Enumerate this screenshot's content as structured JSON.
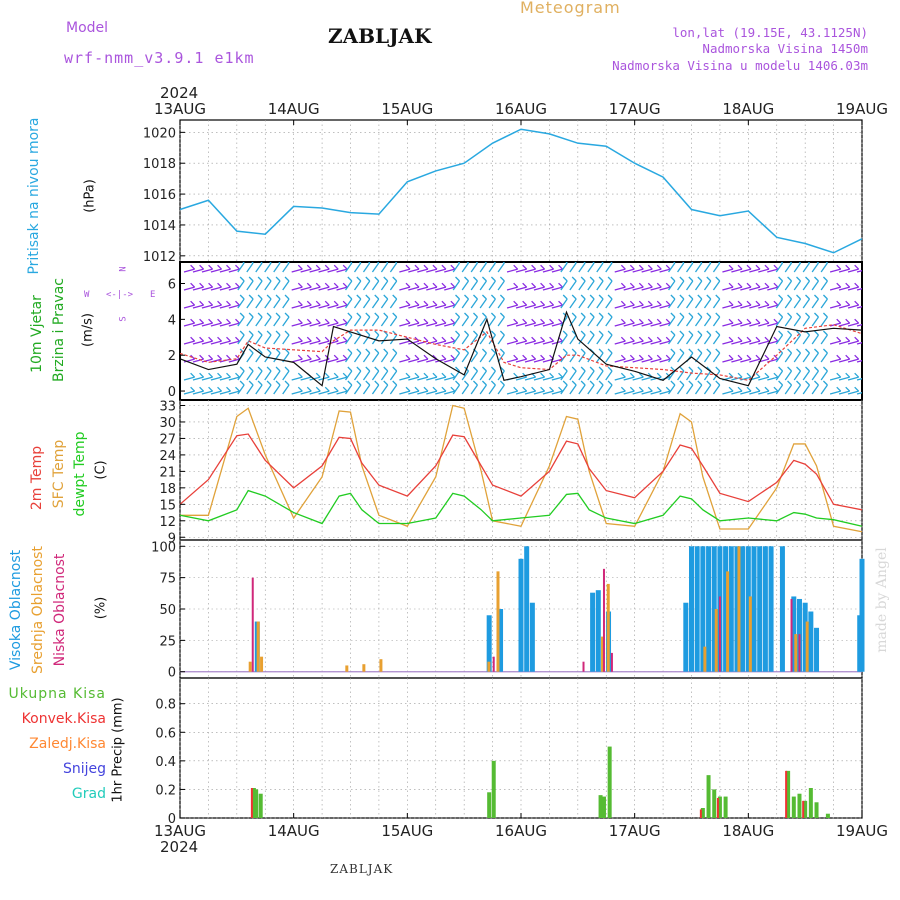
{
  "header": {
    "model_label": "Model",
    "model_name": "wrf-nmm_v3.9.1 e1km",
    "location": "ZABLJAK",
    "title": "Meteogram",
    "coords": "lon,lat (19.15E, 43.1125N)",
    "elevation": "Nadmorska Visina 1450m",
    "model_elevation": "Nadmorska Visina u modelu 1406.03m"
  },
  "footer": {
    "location": "ZABLJAK",
    "credit": "made by Angel"
  },
  "colors": {
    "pressure": "#29a8e0",
    "wind_label": "#22aa22",
    "wind_barb_gust": "#8a2be2",
    "wind_barb_low": "#2aa6d8",
    "temp_2m": "#e8403a",
    "temp_sfc": "#e0a23a",
    "dewpoint": "#22cc22",
    "cloud_high": "#1e9be0",
    "cloud_mid": "#e8a030",
    "cloud_low": "#d0287a",
    "precip_total": "#55bb33",
    "precip_conv": "#ee3333",
    "precip_frz": "#ff8833",
    "precip_snow": "#4444dd",
    "precip_graupel": "#22ccbb",
    "title": "#e0b060",
    "model": "#aa55dd",
    "credit": "#d8d8d8"
  },
  "chart_data": [
    {
      "type": "line",
      "panel": "pressure",
      "ylabel_1": "Pritisak na nivou mora",
      "ylabel_2": "(hPa)",
      "year_label": "2024",
      "x_ticks": [
        "13AUG",
        "14AUG",
        "15AUG",
        "16AUG",
        "17AUG",
        "18AUG",
        "19AUG"
      ],
      "ylim": [
        1011.6,
        1020.8
      ],
      "y_ticks": [
        1012,
        1014,
        1016,
        1018,
        1020
      ],
      "grid": true,
      "x": [
        0,
        0.25,
        0.5,
        0.75,
        1.0,
        1.25,
        1.5,
        1.75,
        2.0,
        2.25,
        2.5,
        2.75,
        3.0,
        3.25,
        3.5,
        3.75,
        4.0,
        4.25,
        4.5,
        4.75,
        5.0,
        5.25,
        5.5,
        5.75,
        6.0
      ],
      "values": [
        1015.0,
        1015.6,
        1013.6,
        1013.4,
        1015.2,
        1015.1,
        1014.8,
        1014.7,
        1016.8,
        1017.5,
        1018.0,
        1019.3,
        1020.2,
        1019.9,
        1019.3,
        1019.1,
        1018.0,
        1017.1,
        1015.0,
        1014.6,
        1014.9,
        1013.2,
        1012.8,
        1012.2,
        1013.1
      ]
    },
    {
      "type": "line",
      "panel": "wind",
      "ylabel_1": "10m Vjetar",
      "ylabel_2": "Brzina i Pravac",
      "ylabel_3": "(m/s)",
      "compass_n": "N",
      "compass_w": "W",
      "compass_e": "E",
      "compass_s": "S",
      "ylim": [
        -0.5,
        7.2
      ],
      "y_ticks": [
        0,
        2,
        4,
        6
      ],
      "x": [
        0,
        0.25,
        0.5,
        0.6,
        0.75,
        1.0,
        1.25,
        1.35,
        1.5,
        1.75,
        2.0,
        2.25,
        2.5,
        2.7,
        2.85,
        3.0,
        3.25,
        3.4,
        3.5,
        3.75,
        4.0,
        4.25,
        4.5,
        4.75,
        5.0,
        5.25,
        5.5,
        5.75,
        6.0
      ],
      "series": [
        {
          "name": "speed",
          "values": [
            1.8,
            1.2,
            1.5,
            2.6,
            1.9,
            1.6,
            0.3,
            3.6,
            3.3,
            2.8,
            2.9,
            1.8,
            0.9,
            4.0,
            0.6,
            0.8,
            1.2,
            4.4,
            2.9,
            1.5,
            1.1,
            0.6,
            1.9,
            0.7,
            0.3,
            3.6,
            3.3,
            3.5,
            3.4
          ]
        },
        {
          "name": "gust",
          "values": [
            2.1,
            1.6,
            1.8,
            2.8,
            2.4,
            2.3,
            2.2,
            2.8,
            3.4,
            3.4,
            3.0,
            2.6,
            2.3,
            3.3,
            1.6,
            1.3,
            1.2,
            2.0,
            2.0,
            1.4,
            1.3,
            1.2,
            1.0,
            0.9,
            0.6,
            2.0,
            3.5,
            3.7,
            3.2
          ]
        }
      ]
    },
    {
      "type": "line",
      "panel": "temperature",
      "ylabel_1": "2m Temp",
      "ylabel_2": "SFC Temp",
      "ylabel_3": "dewpt Temp",
      "ylabel_4": "(C)",
      "ylim": [
        8.5,
        34
      ],
      "y_ticks": [
        9,
        12,
        15,
        18,
        21,
        24,
        27,
        30,
        33
      ],
      "x": [
        0,
        0.25,
        0.5,
        0.6,
        0.75,
        1.0,
        1.25,
        1.4,
        1.5,
        1.6,
        1.75,
        2.0,
        2.25,
        2.4,
        2.5,
        2.65,
        2.75,
        3.0,
        3.25,
        3.4,
        3.5,
        3.6,
        3.75,
        4.0,
        4.25,
        4.4,
        4.5,
        4.6,
        4.75,
        5.0,
        5.25,
        5.4,
        5.5,
        5.6,
        5.75,
        6.0
      ],
      "series": [
        {
          "name": "2m Temp",
          "values": [
            15,
            19.5,
            27.5,
            27.8,
            23,
            18,
            22,
            27.2,
            27.0,
            22.5,
            18.5,
            16.5,
            22,
            27.6,
            27.3,
            22,
            18.5,
            16.5,
            21,
            26.5,
            26.0,
            21.5,
            17.5,
            16.2,
            21,
            25.8,
            25.2,
            22,
            17,
            15.5,
            19,
            23.0,
            22.3,
            20.5,
            15,
            14
          ]
        },
        {
          "name": "SFC Temp",
          "values": [
            13,
            13,
            31,
            32.5,
            24,
            12.5,
            20,
            32.0,
            31.8,
            22,
            13,
            11,
            20,
            33.0,
            32.5,
            21,
            12,
            11,
            22,
            31.0,
            30.5,
            21,
            11.5,
            11,
            21,
            31.5,
            30,
            20,
            10.5,
            10.5,
            18,
            26,
            26,
            22,
            11,
            10
          ]
        },
        {
          "name": "dewpt Temp",
          "values": [
            13,
            12,
            14,
            17.5,
            16.5,
            13.5,
            11.5,
            16.5,
            17.0,
            14,
            11.5,
            11.5,
            12.5,
            17.0,
            16.5,
            14,
            12,
            12.5,
            13,
            16.8,
            17.0,
            14,
            12.5,
            11.5,
            13,
            16.5,
            16,
            14,
            12,
            12.5,
            12,
            13.5,
            13.2,
            12.5,
            12.2,
            11
          ]
        }
      ]
    },
    {
      "type": "bar",
      "panel": "cloud",
      "ylabel_1": "Visoka Oblacnost",
      "ylabel_2": "Srednja Oblacnost",
      "ylabel_3": "Niska Oblacnost",
      "ylabel_4": "(%)",
      "ylim": [
        -5,
        105
      ],
      "y_ticks": [
        0,
        25,
        50,
        75,
        100
      ],
      "series": [
        {
          "name": "Visoka Oblacnost",
          "points": [
            [
              0.68,
              40
            ],
            [
              2.72,
              45
            ],
            [
              2.82,
              50
            ],
            [
              3.0,
              90
            ],
            [
              3.05,
              100
            ],
            [
              3.1,
              55
            ],
            [
              3.63,
              63
            ],
            [
              3.68,
              65
            ],
            [
              3.77,
              48
            ],
            [
              4.45,
              55
            ],
            [
              4.5,
              100
            ],
            [
              4.55,
              100
            ],
            [
              4.6,
              100
            ],
            [
              4.65,
              100
            ],
            [
              4.7,
              100
            ],
            [
              4.75,
              100
            ],
            [
              4.8,
              100
            ],
            [
              4.85,
              100
            ],
            [
              4.9,
              100
            ],
            [
              4.95,
              100
            ],
            [
              5.0,
              100
            ],
            [
              5.05,
              100
            ],
            [
              5.1,
              100
            ],
            [
              5.15,
              100
            ],
            [
              5.2,
              100
            ],
            [
              5.3,
              100
            ],
            [
              5.4,
              60
            ],
            [
              5.45,
              58
            ],
            [
              5.5,
              55
            ],
            [
              5.55,
              48
            ],
            [
              5.6,
              35
            ],
            [
              5.98,
              45
            ],
            [
              6.0,
              90
            ]
          ]
        },
        {
          "name": "Srednja Oblacnost",
          "points": [
            [
              0.6,
              8
            ],
            [
              0.67,
              40
            ],
            [
              0.7,
              12
            ],
            [
              1.45,
              5
            ],
            [
              1.6,
              6
            ],
            [
              1.75,
              10
            ],
            [
              2.7,
              8
            ],
            [
              2.78,
              80
            ],
            [
              3.7,
              28
            ],
            [
              3.75,
              70
            ],
            [
              4.6,
              20
            ],
            [
              4.7,
              50
            ],
            [
              4.8,
              80
            ],
            [
              4.9,
              100
            ],
            [
              5.0,
              60
            ],
            [
              5.4,
              30
            ],
            [
              5.5,
              40
            ]
          ]
        },
        {
          "name": "Niska Oblacnost",
          "points": [
            [
              0.64,
              75
            ],
            [
              2.76,
              12
            ],
            [
              3.55,
              8
            ],
            [
              3.73,
              82
            ],
            [
              3.8,
              15
            ],
            [
              4.75,
              60
            ],
            [
              5.38,
              58
            ],
            [
              5.45,
              30
            ]
          ]
        }
      ]
    },
    {
      "type": "bar",
      "panel": "precip",
      "ylabel_1": "1hr Precip (mm)",
      "legend": [
        "Ukupna Kisa",
        "Konvek.Kisa",
        "Zaledj.Kisa",
        "Snijeg",
        "Grad"
      ],
      "ylim": [
        0,
        0.98
      ],
      "y_ticks": [
        0,
        0.2,
        0.4,
        0.6,
        0.8
      ],
      "series": [
        {
          "name": "Ukupna Kisa",
          "points": [
            [
              0.65,
              0.21
            ],
            [
              0.67,
              0.2
            ],
            [
              0.71,
              0.17
            ],
            [
              2.72,
              0.18
            ],
            [
              2.76,
              0.4
            ],
            [
              3.7,
              0.16
            ],
            [
              3.73,
              0.15
            ],
            [
              3.78,
              0.5
            ],
            [
              4.6,
              0.07
            ],
            [
              4.65,
              0.3
            ],
            [
              4.7,
              0.2
            ],
            [
              4.75,
              0.15
            ],
            [
              4.8,
              0.15
            ],
            [
              5.35,
              0.33
            ],
            [
              5.4,
              0.15
            ],
            [
              5.45,
              0.17
            ],
            [
              5.5,
              0.12
            ],
            [
              5.55,
              0.21
            ],
            [
              5.6,
              0.11
            ],
            [
              5.7,
              0.03
            ]
          ]
        },
        {
          "name": "Konvek.Kisa",
          "points": [
            [
              0.65,
              0.21
            ],
            [
              4.6,
              0.06
            ],
            [
              4.75,
              0.14
            ],
            [
              5.35,
              0.33
            ],
            [
              5.5,
              0.12
            ]
          ]
        }
      ]
    }
  ]
}
